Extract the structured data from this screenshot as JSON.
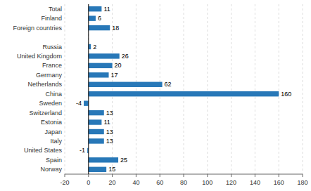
{
  "chart_data": {
    "type": "bar",
    "orientation": "horizontal",
    "categories": [
      "Norway",
      "Spain",
      "United States",
      "Italy",
      "Japan",
      "Estonia",
      "Switzerland",
      "Sweden",
      "China",
      "Netherlands",
      "Germany",
      "France",
      "United Kingdom",
      "Russia",
      null,
      "Foreign countries",
      "Finland",
      "Total"
    ],
    "values": [
      15,
      25,
      -1,
      13,
      13,
      11,
      13,
      -4,
      160,
      62,
      17,
      20,
      26,
      2,
      null,
      18,
      6,
      11
    ],
    "color": "#2878b8",
    "xlim": [
      -20,
      180
    ],
    "xticks": [
      -20,
      0,
      20,
      40,
      60,
      80,
      100,
      120,
      140,
      160,
      180
    ],
    "grid": true,
    "data_labels": true
  }
}
